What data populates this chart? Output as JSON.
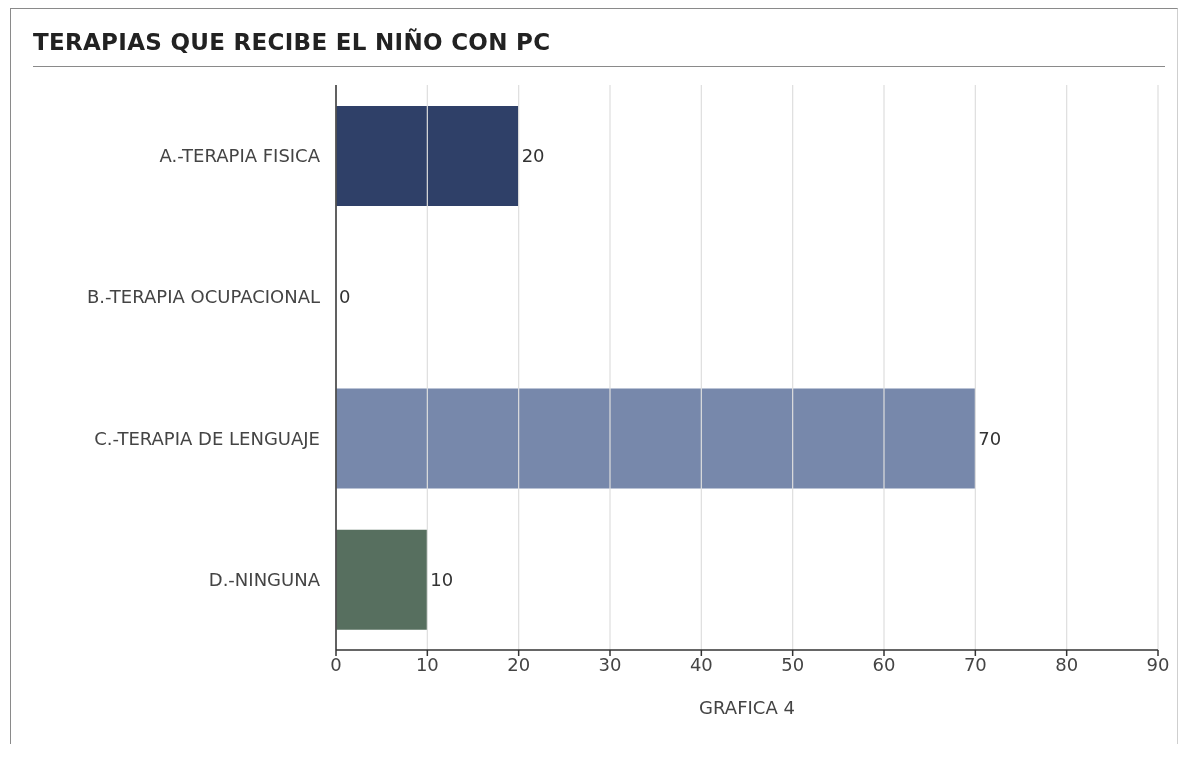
{
  "chart_data": {
    "type": "bar",
    "orientation": "horizontal",
    "title": "TERAPIAS QUE RECIBE EL NIÑO CON PC",
    "xlabel": "GRAFICA 4",
    "categories": [
      "A.-TERAPIA FISICA",
      "B.-TERAPIA OCUPACIONAL",
      "C.-TERAPIA DE LENGUAJE",
      "D.-NINGUNA"
    ],
    "values": [
      20,
      0,
      70,
      10
    ],
    "colors": [
      "#2f4068",
      "#2f4068",
      "#7788ab",
      "#576f5f"
    ],
    "xlim": [
      0,
      90
    ],
    "xticks": [
      0,
      10,
      20,
      30,
      40,
      50,
      60,
      70,
      80,
      90
    ],
    "grid": "x",
    "data_labels": true
  }
}
